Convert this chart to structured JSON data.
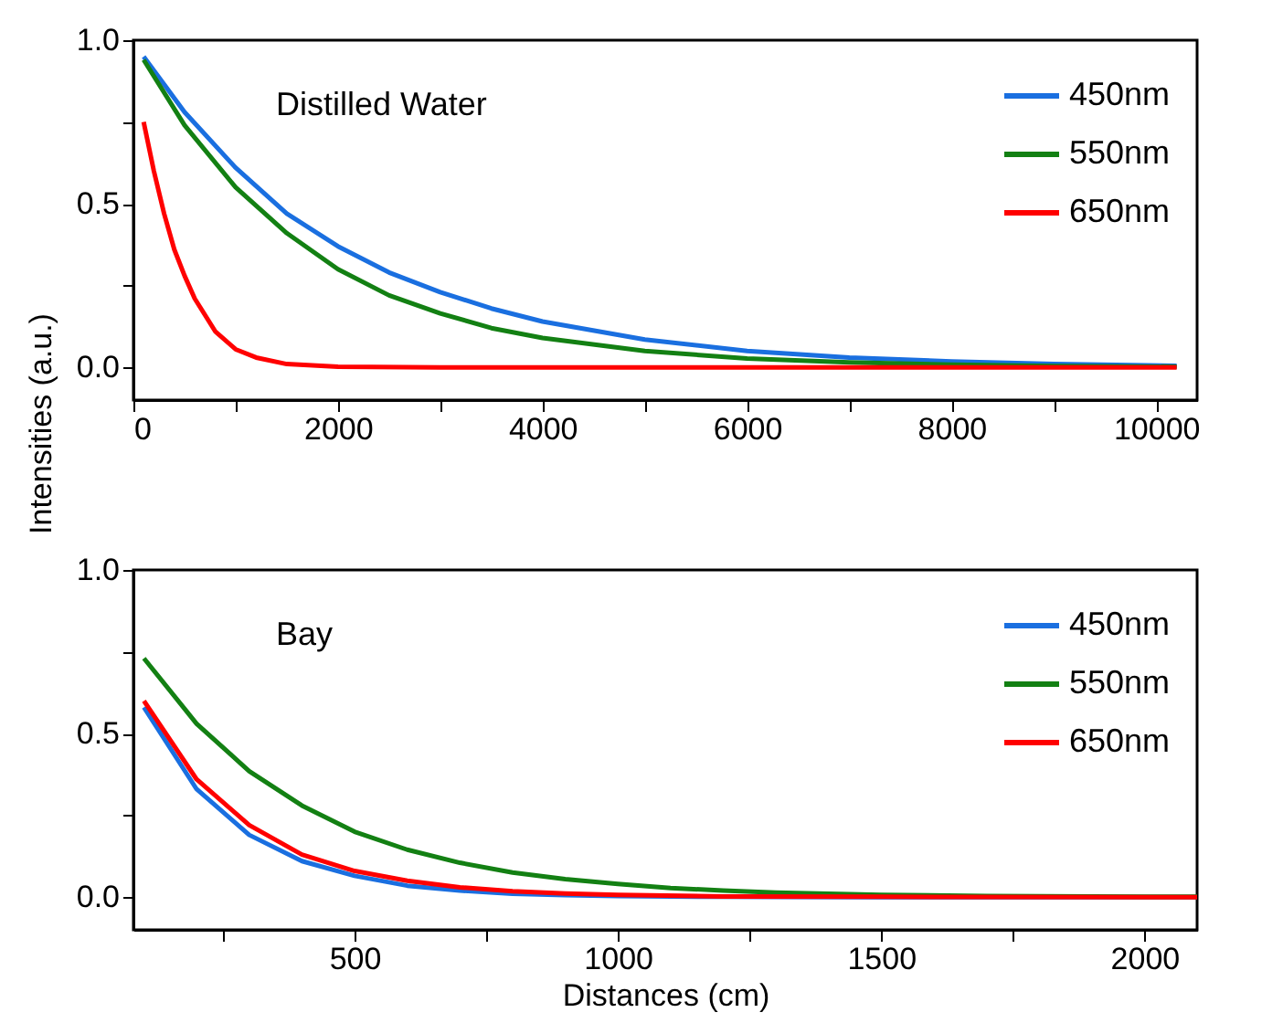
{
  "chart_data": [
    {
      "type": "line",
      "ylabel": "Intensities (a.u.)",
      "annotations": [
        "Distilled Water"
      ],
      "legend": "top right",
      "xlim": [
        0,
        10400
      ],
      "ylim": [
        -0.1,
        1.0
      ],
      "xticks": [
        0,
        {
          "value": 1000,
          "label": null
        },
        2000,
        {
          "value": 3000,
          "label": null
        },
        4000,
        {
          "value": 5000,
          "label": null
        },
        6000,
        {
          "value": 7000,
          "label": null
        },
        8000,
        {
          "value": 9000,
          "label": null
        },
        10000
      ],
      "yticks": [
        {
          "value": 0,
          "label": "0.0"
        },
        {
          "value": 0.25,
          "label": null
        },
        0.5,
        {
          "value": 0.75,
          "label": null
        },
        {
          "value": 1,
          "label": "1.0"
        }
      ],
      "series": [
        {
          "name": "450nm",
          "color": "#1a6fe0",
          "x": [
            100,
            500,
            1000,
            1500,
            2000,
            2500,
            3000,
            3500,
            4000,
            5000,
            6000,
            7000,
            8000,
            9000,
            10200
          ],
          "values": [
            0.95,
            0.78,
            0.61,
            0.47,
            0.37,
            0.29,
            0.23,
            0.18,
            0.14,
            0.085,
            0.05,
            0.03,
            0.018,
            0.01,
            0.005
          ]
        },
        {
          "name": "550nm",
          "color": "#138013",
          "x": [
            100,
            500,
            1000,
            1500,
            2000,
            2500,
            3000,
            3500,
            4000,
            5000,
            6000,
            7000,
            8000,
            9000,
            10200
          ],
          "values": [
            0.94,
            0.74,
            0.55,
            0.41,
            0.3,
            0.22,
            0.165,
            0.12,
            0.09,
            0.05,
            0.027,
            0.015,
            0.008,
            0.004,
            0.002
          ]
        },
        {
          "name": "650nm",
          "color": "#ff0000",
          "x": [
            100,
            200,
            300,
            400,
            500,
            600,
            800,
            1000,
            1200,
            1500,
            2000,
            3000,
            10200
          ],
          "values": [
            0.75,
            0.6,
            0.47,
            0.36,
            0.28,
            0.21,
            0.11,
            0.055,
            0.03,
            0.01,
            0.002,
            0,
            0
          ]
        }
      ]
    },
    {
      "type": "line",
      "xlabel": "Distances (cm)",
      "annotations": [
        "Bay"
      ],
      "legend": "top right",
      "xlim": [
        80,
        2100
      ],
      "ylim": [
        -0.1,
        1.0
      ],
      "xticks": [
        {
          "value": 250,
          "label": null
        },
        500,
        {
          "value": 750,
          "label": null
        },
        1000,
        {
          "value": 1250,
          "label": null
        },
        1500,
        {
          "value": 1750,
          "label": null
        },
        2000
      ],
      "yticks": [
        {
          "value": 0,
          "label": "0.0"
        },
        {
          "value": 0.25,
          "label": null
        },
        0.5,
        {
          "value": 0.75,
          "label": null
        },
        {
          "value": 1,
          "label": "1.0"
        }
      ],
      "series": [
        {
          "name": "450nm",
          "color": "#1a6fe0",
          "x": [
            100,
            200,
            300,
            400,
            500,
            600,
            700,
            800,
            900,
            1000,
            1200,
            1500,
            2100
          ],
          "values": [
            0.58,
            0.33,
            0.19,
            0.11,
            0.065,
            0.035,
            0.02,
            0.01,
            0.006,
            0.003,
            0.001,
            0,
            0
          ]
        },
        {
          "name": "550nm",
          "color": "#138013",
          "x": [
            100,
            200,
            300,
            400,
            500,
            600,
            700,
            800,
            900,
            1000,
            1100,
            1200,
            1300,
            1400,
            1500,
            1700,
            2000,
            2100
          ],
          "values": [
            0.73,
            0.53,
            0.385,
            0.28,
            0.2,
            0.145,
            0.105,
            0.075,
            0.055,
            0.04,
            0.028,
            0.02,
            0.014,
            0.01,
            0.007,
            0.003,
            0.001,
            0.001
          ]
        },
        {
          "name": "650nm",
          "color": "#ff0000",
          "x": [
            100,
            200,
            300,
            400,
            500,
            600,
            700,
            800,
            900,
            1000,
            1200,
            1500,
            2100
          ],
          "values": [
            0.6,
            0.36,
            0.22,
            0.13,
            0.08,
            0.05,
            0.03,
            0.018,
            0.011,
            0.007,
            0.002,
            0.001,
            0
          ]
        }
      ]
    }
  ]
}
